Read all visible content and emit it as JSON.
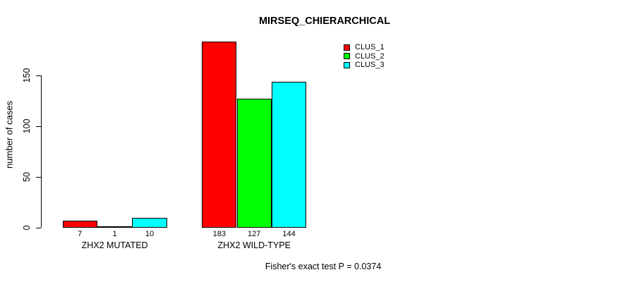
{
  "chart_data": {
    "type": "bar",
    "title": "MIRSEQ_CHIERARCHICAL",
    "categories": [
      "ZHX2 MUTATED",
      "ZHX2 WILD-TYPE"
    ],
    "series": [
      {
        "name": "CLUS_1",
        "color": "#ff0000",
        "values": [
          7,
          183
        ]
      },
      {
        "name": "CLUS_2",
        "color": "#00ff00",
        "values": [
          1,
          127
        ]
      },
      {
        "name": "CLUS_3",
        "color": "#00ffff",
        "values": [
          10,
          144
        ]
      }
    ],
    "xlabel": "",
    "ylabel": "number of cases",
    "yticks": [
      0,
      50,
      100,
      150
    ],
    "ylim": [
      0,
      190
    ],
    "grid": false,
    "bar_value_labels": true,
    "bar_border_color": "#000000",
    "legend_position": "top-right",
    "legend_entries": [
      "CLUS_1",
      "CLUS_2",
      "CLUS_3"
    ],
    "annotation": "Fisher's exact test P = 0.0374"
  }
}
